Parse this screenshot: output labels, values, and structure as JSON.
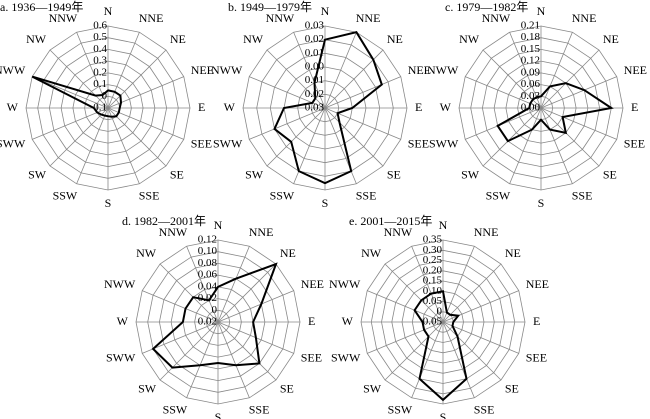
{
  "chart_data": [
    {
      "type": "radar",
      "title": "a. 1936—1949年",
      "categories": [
        "N",
        "NNE",
        "NE",
        "NEE",
        "E",
        "SEE",
        "SE",
        "SSE",
        "S",
        "SSW",
        "SW",
        "SWW",
        "W",
        "NWW",
        "NW",
        "NNW"
      ],
      "values": [
        0.05,
        0.05,
        0.05,
        0.02,
        0.0,
        0.0,
        0.0,
        -0.02,
        -0.03,
        -0.03,
        -0.02,
        0.0,
        0.02,
        0.6,
        0.05,
        0.02
      ],
      "ylim": [
        -0.1,
        0.6
      ],
      "yticks": [
        {
          "value": -0.1,
          "label": "0.1"
        },
        0,
        0.1,
        0.2,
        0.3,
        0.4,
        0.5,
        0.6
      ],
      "color": "#000000"
    },
    {
      "type": "radar",
      "title": "b. 1949—1979年",
      "categories": [
        "N",
        "NNE",
        "NE",
        "NEE",
        "E",
        "SEE",
        "SE",
        "SSE",
        "S",
        "SSW",
        "SW",
        "SWW",
        "W",
        "NWW",
        "NW",
        "NNW"
      ],
      "values": [
        0.02,
        0.03,
        0.02,
        0.015,
        -0.01,
        -0.02,
        -0.015,
        0.02,
        0.025,
        0.02,
        0.005,
        0.01,
        0.0,
        -0.02,
        -0.02,
        -0.01
      ],
      "ylim": [
        -0.03,
        0.03
      ],
      "yticks": [
        {
          "value": -0.03,
          "label": "0.03"
        },
        {
          "value": -0.02,
          "label": "0.02"
        },
        {
          "value": -0.01,
          "label": "0.01"
        },
        {
          "value": 0,
          "label": "0.00"
        },
        0.01,
        0.02,
        0.03
      ],
      "color": "#000000"
    },
    {
      "type": "radar",
      "title": "c. 1979—1982年",
      "categories": [
        "N",
        "NNE",
        "NE",
        "NEE",
        "E",
        "SEE",
        "SE",
        "SSE",
        "S",
        "SSW",
        "SW",
        "SWW",
        "W",
        "NWW",
        "NW",
        "NNW"
      ],
      "values": [
        0.03,
        0.06,
        0.09,
        0.12,
        0.18,
        0.06,
        0.09,
        0.06,
        0.03,
        0.06,
        0.12,
        0.12,
        0.03,
        0.03,
        0.03,
        0.03
      ],
      "ylim": [
        0,
        0.21
      ],
      "yticks": [
        {
          "value": 0,
          "label": "0.00"
        },
        0.03,
        0.06,
        0.09,
        0.12,
        0.15,
        0.18,
        0.21
      ],
      "color": "#000000"
    },
    {
      "type": "radar",
      "title": "d. 1982—2001年",
      "categories": [
        "N",
        "NNE",
        "NE",
        "NEE",
        "E",
        "SEE",
        "SE",
        "SSE",
        "S",
        "SSW",
        "SW",
        "SWW",
        "W",
        "NWW",
        "NW",
        "NNW"
      ],
      "values": [
        0.04,
        0.06,
        0.12,
        0.06,
        0.04,
        0.05,
        0.08,
        0.06,
        0.05,
        0.06,
        0.09,
        0.1,
        0.04,
        0.04,
        0.04,
        0.02
      ],
      "ylim": [
        -0.02,
        0.12
      ],
      "yticks": [
        {
          "value": -0.02,
          "label": "0.02"
        },
        0,
        0.02,
        0.04,
        0.06,
        0.08,
        {
          "value": 0.1,
          "label": "0.10"
        },
        0.12
      ],
      "color": "#000000"
    },
    {
      "type": "radar",
      "title": "e. 2001—2015年",
      "categories": [
        "N",
        "NNE",
        "NE",
        "NEE",
        "E",
        "SEE",
        "SE",
        "SSE",
        "S",
        "SSW",
        "SW",
        "SWW",
        "W",
        "NWW",
        "NW",
        "NNW"
      ],
      "values": [
        0.1,
        0.0,
        0.0,
        0.03,
        0.0,
        0.0,
        0.05,
        0.25,
        0.33,
        0.25,
        0.05,
        0.05,
        0.05,
        0.1,
        0.1,
        0.1
      ],
      "ylim": [
        -0.05,
        0.35
      ],
      "yticks": [
        {
          "value": -0.05,
          "label": "0.05"
        },
        0,
        0.05,
        {
          "value": 0.1,
          "label": "0.10"
        },
        0.15,
        {
          "value": 0.2,
          "label": "0.20"
        },
        0.25,
        {
          "value": 0.3,
          "label": "0.30"
        },
        0.35
      ],
      "color": "#000000"
    }
  ]
}
